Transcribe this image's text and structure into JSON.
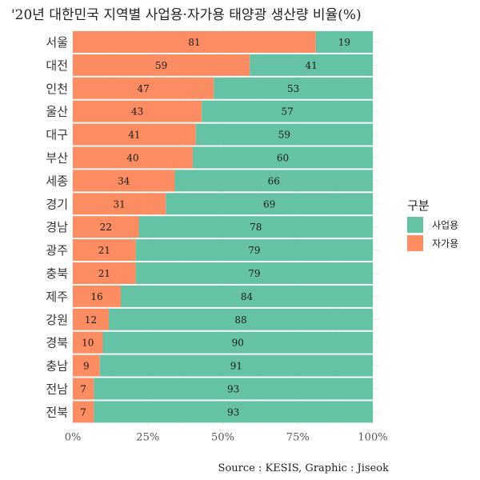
{
  "chart_data": {
    "type": "bar",
    "orientation": "horizontal",
    "stacked": true,
    "title": "'20년 대한민국 지역별 사업용·자가용 태양광 생산량 비율(%)",
    "caption": "Source : KESIS, Graphic : Jiseok",
    "legend_title": "구분",
    "legend_position": "right",
    "xlabel": "",
    "ylabel": "",
    "xlim": [
      0,
      100
    ],
    "x_ticks": [
      "0%",
      "25%",
      "50%",
      "75%",
      "100%"
    ],
    "grid": true,
    "categories": [
      "서울",
      "대전",
      "인천",
      "울산",
      "대구",
      "부산",
      "세종",
      "경기",
      "경남",
      "광주",
      "충북",
      "제주",
      "강원",
      "경북",
      "충남",
      "전남",
      "전북"
    ],
    "series": [
      {
        "name": "자가용",
        "color": "#fc8d62",
        "values": [
          81,
          59,
          47,
          43,
          41,
          40,
          34,
          31,
          22,
          21,
          21,
          16,
          12,
          10,
          9,
          7,
          7
        ]
      },
      {
        "name": "사업용",
        "color": "#66c2a5",
        "values": [
          19,
          41,
          53,
          57,
          59,
          60,
          66,
          69,
          78,
          79,
          79,
          84,
          88,
          90,
          91,
          93,
          93
        ]
      }
    ],
    "legend_order": [
      "사업용",
      "자가용"
    ]
  }
}
